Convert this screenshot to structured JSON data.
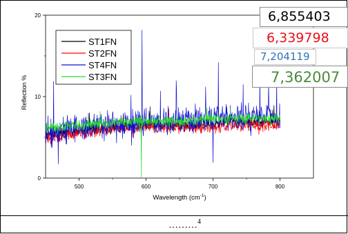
{
  "chart_data": {
    "type": "line",
    "title": "",
    "xlabel": "Wavelength (cm",
    "xlabel_superscript": "-1",
    "xlabel_suffix": ")",
    "ylabel": "Reflection %",
    "xlim": [
      450,
      850
    ],
    "ylim": [
      0,
      20
    ],
    "x_ticks": [
      500,
      600,
      700,
      800
    ],
    "y_ticks": [
      0,
      10,
      20
    ],
    "x_minor_ticks": [
      550,
      650,
      750
    ],
    "y_minor_ticks": [
      5,
      15
    ],
    "grid": false,
    "legend_position": "top-left",
    "series": [
      {
        "name": "ST1FN",
        "color": "#000000",
        "x": [
          450,
          475,
          500,
          525,
          550,
          575,
          600,
          625,
          650,
          675,
          700,
          725,
          750,
          775,
          800
        ],
        "y": [
          5.2,
          5.6,
          5.9,
          6.1,
          6.3,
          6.4,
          6.5,
          6.5,
          6.5,
          6.6,
          6.7,
          6.9,
          6.9,
          7.0,
          7.0
        ],
        "noise": 0.9,
        "spikes": []
      },
      {
        "name": "ST2FN",
        "color": "#ff0000",
        "x": [
          450,
          475,
          500,
          525,
          550,
          575,
          600,
          625,
          650,
          675,
          700,
          725,
          750,
          775,
          800
        ],
        "y": [
          4.8,
          5.2,
          5.5,
          5.8,
          6.0,
          6.1,
          6.2,
          6.2,
          6.2,
          6.2,
          6.3,
          6.4,
          6.5,
          6.5,
          6.5
        ],
        "noise": 0.9,
        "spikes": []
      },
      {
        "name": "ST4FN",
        "color": "#1010d0",
        "x": [
          450,
          475,
          500,
          525,
          550,
          575,
          600,
          625,
          650,
          675,
          700,
          725,
          750,
          775,
          800
        ],
        "y": [
          5.3,
          5.8,
          6.1,
          6.3,
          6.5,
          6.6,
          6.8,
          6.9,
          7.0,
          7.0,
          7.2,
          7.3,
          7.4,
          7.5,
          7.6
        ],
        "noise": 2.0,
        "spikes": [
          [
            594,
            18.2
          ],
          [
            462,
            11.9
          ],
          [
            469,
            1.7
          ],
          [
            700,
            1.9
          ],
          [
            708,
            14.2
          ],
          [
            770,
            12.8
          ],
          [
            795,
            11.9
          ],
          [
            745,
            11.5
          ],
          [
            689,
            11.2
          ],
          [
            783,
            11.6
          ]
        ]
      },
      {
        "name": "ST3FN",
        "color": "#22dd22",
        "x": [
          450,
          475,
          500,
          525,
          550,
          575,
          600,
          625,
          650,
          675,
          700,
          725,
          750,
          775,
          800
        ],
        "y": [
          6.2,
          6.4,
          6.5,
          6.7,
          6.8,
          6.9,
          7.0,
          7.0,
          7.0,
          7.1,
          7.2,
          7.2,
          7.3,
          7.4,
          7.4
        ],
        "noise": 0.8,
        "spikes": [
          [
            593,
            0
          ]
        ]
      }
    ]
  },
  "value_boxes": [
    {
      "text": "6,855403",
      "color": "#000000"
    },
    {
      "text": "6,339798",
      "color": "#e8101a"
    },
    {
      "text": "7,204119",
      "color": "#2e74b5"
    },
    {
      "text": "7,362007",
      "color": "#4a8a3a"
    }
  ],
  "footer": {
    "dots": "………",
    "page": "4"
  }
}
